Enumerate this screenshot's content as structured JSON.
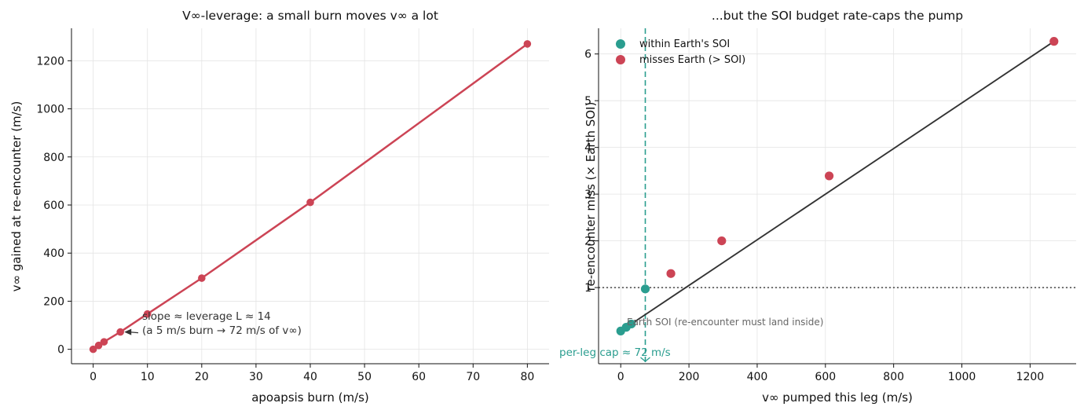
{
  "chart_data": [
    {
      "type": "line",
      "title": "V∞-leverage: a small burn moves v∞ a lot",
      "xlabel": "apoapsis burn (m/s)",
      "ylabel": "v∞ gained at re-encounter (m/s)",
      "xlim": [
        -4,
        84
      ],
      "ylim": [
        -60,
        1335
      ],
      "xticks": [
        0,
        10,
        20,
        30,
        40,
        50,
        60,
        70,
        80
      ],
      "yticks": [
        0,
        200,
        400,
        600,
        800,
        1000,
        1200
      ],
      "grid": true,
      "color": "#cc4455",
      "series": [
        {
          "x": [
            0,
            1,
            2,
            5,
            10,
            20,
            40,
            80
          ],
          "y": [
            0,
            16,
            31,
            72,
            147,
            296,
            611,
            1270
          ]
        }
      ],
      "annotation": {
        "line1": "slope ≈ leverage L ≈ 14",
        "line2": "(a 5 m/s burn → 72 m/s of v∞)",
        "point": [
          5,
          72
        ]
      }
    },
    {
      "type": "scatter",
      "title": "...but the SOI budget rate-caps the pump",
      "xlabel": "v∞ pumped this leg (m/s)",
      "ylabel": "re-encounter miss (× Earth SOI)",
      "xlim": [
        -65,
        1335
      ],
      "ylim": [
        -0.63,
        6.55
      ],
      "xticks": [
        0,
        200,
        400,
        600,
        800,
        1000,
        1200
      ],
      "yticks": [
        1,
        2,
        3,
        4,
        5,
        6
      ],
      "grid": true,
      "legend_position": "top-left",
      "line_x": [
        0,
        1270
      ],
      "line_y": [
        0.07,
        6.27
      ],
      "series": [
        {
          "name": "within Earth's SOI",
          "color": "#2a9d8f",
          "x": [
            0,
            16,
            31,
            72
          ],
          "y": [
            0.07,
            0.15,
            0.22,
            0.97
          ]
        },
        {
          "name": "misses Earth (> SOI)",
          "color": "#cc4455",
          "x": [
            147,
            296,
            611,
            1270
          ],
          "y": [
            1.3,
            2.0,
            3.39,
            6.27
          ]
        }
      ],
      "soi_line": {
        "y": 1,
        "label": "Earth SOI (re-encounter must land inside)"
      },
      "cap_line": {
        "x": 72,
        "label": "per-leg cap ≈ 72 m/s"
      }
    }
  ]
}
